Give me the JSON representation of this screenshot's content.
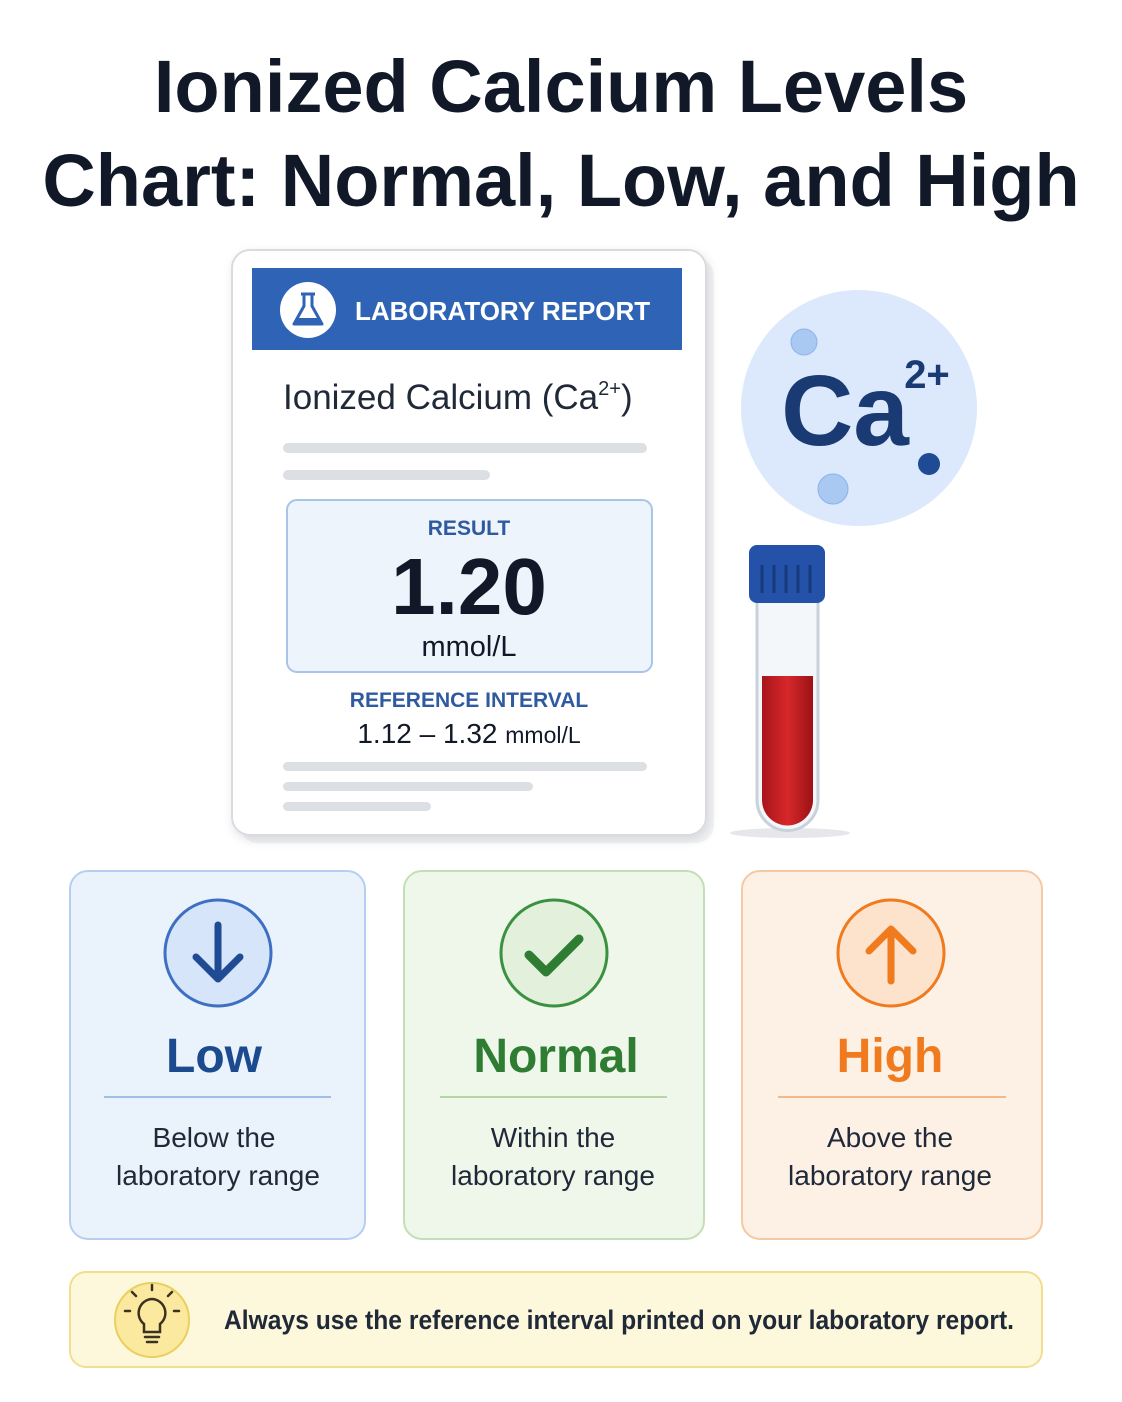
{
  "title": {
    "lines": [
      "Ionized Calcium Levels",
      "Chart: Normal, Low, and High"
    ]
  },
  "report": {
    "header": "LABORATORY REPORT",
    "analyte": {
      "name": "Ionized Calcium (Ca",
      "charge": "2+",
      "close": ")"
    },
    "result": {
      "label": "RESULT",
      "value": "1.20",
      "unit": "mmol/L"
    },
    "reference": {
      "label": "REFERENCE INTERVAL",
      "range": "1.12 – 1.32",
      "unit": "mmol/L"
    }
  },
  "ion": {
    "symbol": "Ca",
    "charge": "2+"
  },
  "cards": [
    {
      "title": "Low",
      "description": [
        "Below the",
        "laboratory range"
      ]
    },
    {
      "title": "Normal",
      "description": [
        "Within the",
        "laboratory range"
      ]
    },
    {
      "title": "High",
      "description": [
        "Above the",
        "laboratory range"
      ]
    }
  ],
  "note": "Always use the reference interval printed on your laboratory report."
}
